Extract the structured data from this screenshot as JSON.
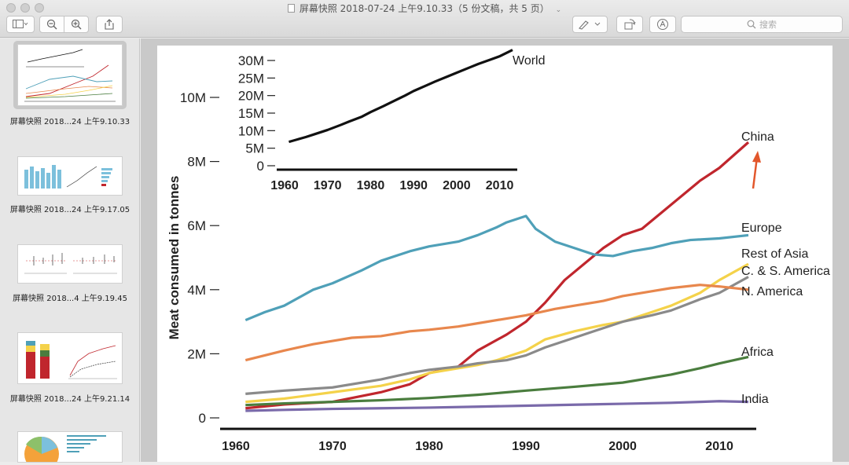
{
  "window": {
    "title": "屏幕快照 2018-07-24 上午9.10.33（5 份文稿，共 5 页）"
  },
  "toolbar": {
    "search_placeholder": "搜索"
  },
  "sidebar": {
    "items": [
      {
        "label": "屏幕快照 2018...24 上午9.10.33",
        "selected": true
      },
      {
        "label": "屏幕快照 2018...24 上午9.17.05",
        "selected": false
      },
      {
        "label": "屏幕快照 2018...4 上午9.19.45",
        "selected": false
      },
      {
        "label": "屏幕快照 2018...24 上午9.21.14",
        "selected": false
      },
      {
        "label": "",
        "selected": false
      }
    ]
  },
  "chart_data": [
    {
      "type": "line",
      "title": "",
      "ylabel": "Meat consumed in tonnes",
      "xlabel": "",
      "xlim": [
        1960,
        2013
      ],
      "ylim": [
        0,
        10000000
      ],
      "x_ticks": [
        "1960",
        "1970",
        "1980",
        "1990",
        "2000",
        "2010"
      ],
      "y_ticks": [
        "0",
        "2M",
        "4M",
        "6M",
        "8M",
        "10M"
      ],
      "grid": false,
      "series": [
        {
          "name": "China",
          "color": "#c0262d",
          "points": [
            [
              1961,
              0.3
            ],
            [
              1965,
              0.42
            ],
            [
              1970,
              0.5
            ],
            [
              1975,
              0.8
            ],
            [
              1978,
              1.05
            ],
            [
              1980,
              1.4
            ],
            [
              1983,
              1.6
            ],
            [
              1985,
              2.1
            ],
            [
              1988,
              2.6
            ],
            [
              1990,
              3.0
            ],
            [
              1992,
              3.6
            ],
            [
              1994,
              4.3
            ],
            [
              1996,
              4.8
            ],
            [
              1998,
              5.3
            ],
            [
              2000,
              5.7
            ],
            [
              2002,
              5.9
            ],
            [
              2004,
              6.4
            ],
            [
              2006,
              6.9
            ],
            [
              2008,
              7.4
            ],
            [
              2010,
              7.8
            ],
            [
              2013,
              8.6
            ]
          ]
        },
        {
          "name": "Europe",
          "color": "#4fa0b8",
          "points": [
            [
              1961,
              3.05
            ],
            [
              1963,
              3.3
            ],
            [
              1965,
              3.5
            ],
            [
              1968,
              4.0
            ],
            [
              1970,
              4.2
            ],
            [
              1973,
              4.6
            ],
            [
              1975,
              4.9
            ],
            [
              1978,
              5.2
            ],
            [
              1980,
              5.35
            ],
            [
              1983,
              5.5
            ],
            [
              1985,
              5.7
            ],
            [
              1987,
              5.95
            ],
            [
              1988,
              6.1
            ],
            [
              1990,
              6.3
            ],
            [
              1991,
              5.9
            ],
            [
              1993,
              5.5
            ],
            [
              1995,
              5.3
            ],
            [
              1997,
              5.1
            ],
            [
              1999,
              5.05
            ],
            [
              2001,
              5.2
            ],
            [
              2003,
              5.3
            ],
            [
              2005,
              5.45
            ],
            [
              2007,
              5.55
            ],
            [
              2010,
              5.6
            ],
            [
              2013,
              5.7
            ]
          ]
        },
        {
          "name": "Rest of Asia",
          "color": "#f4d24a",
          "points": [
            [
              1961,
              0.5
            ],
            [
              1965,
              0.6
            ],
            [
              1970,
              0.8
            ],
            [
              1975,
              1.0
            ],
            [
              1978,
              1.2
            ],
            [
              1980,
              1.4
            ],
            [
              1983,
              1.55
            ],
            [
              1985,
              1.65
            ],
            [
              1987,
              1.8
            ],
            [
              1990,
              2.1
            ],
            [
              1992,
              2.45
            ],
            [
              1995,
              2.7
            ],
            [
              1998,
              2.9
            ],
            [
              2000,
              3.0
            ],
            [
              2003,
              3.3
            ],
            [
              2005,
              3.5
            ],
            [
              2008,
              3.9
            ],
            [
              2010,
              4.3
            ],
            [
              2013,
              4.8
            ]
          ]
        },
        {
          "name": "C. & S. America",
          "color": "#8a8a8a",
          "points": [
            [
              1961,
              0.75
            ],
            [
              1965,
              0.85
            ],
            [
              1970,
              0.95
            ],
            [
              1975,
              1.2
            ],
            [
              1978,
              1.4
            ],
            [
              1980,
              1.5
            ],
            [
              1983,
              1.6
            ],
            [
              1985,
              1.7
            ],
            [
              1988,
              1.8
            ],
            [
              1990,
              1.95
            ],
            [
              1992,
              2.2
            ],
            [
              1995,
              2.5
            ],
            [
              1998,
              2.8
            ],
            [
              2000,
              3.0
            ],
            [
              2003,
              3.2
            ],
            [
              2005,
              3.35
            ],
            [
              2008,
              3.7
            ],
            [
              2010,
              3.9
            ],
            [
              2013,
              4.4
            ]
          ]
        },
        {
          "name": "N. America",
          "color": "#e8874d",
          "points": [
            [
              1961,
              1.8
            ],
            [
              1965,
              2.1
            ],
            [
              1968,
              2.3
            ],
            [
              1970,
              2.4
            ],
            [
              1972,
              2.5
            ],
            [
              1975,
              2.55
            ],
            [
              1978,
              2.7
            ],
            [
              1980,
              2.75
            ],
            [
              1983,
              2.85
            ],
            [
              1985,
              2.95
            ],
            [
              1988,
              3.1
            ],
            [
              1990,
              3.2
            ],
            [
              1993,
              3.4
            ],
            [
              1995,
              3.5
            ],
            [
              1998,
              3.65
            ],
            [
              2000,
              3.8
            ],
            [
              2003,
              3.95
            ],
            [
              2005,
              4.05
            ],
            [
              2008,
              4.15
            ],
            [
              2010,
              4.1
            ],
            [
              2013,
              4.0
            ]
          ]
        },
        {
          "name": "Africa",
          "color": "#4a7d3e",
          "points": [
            [
              1961,
              0.4
            ],
            [
              1965,
              0.45
            ],
            [
              1970,
              0.5
            ],
            [
              1975,
              0.55
            ],
            [
              1980,
              0.62
            ],
            [
              1985,
              0.72
            ],
            [
              1990,
              0.85
            ],
            [
              1995,
              0.97
            ],
            [
              2000,
              1.1
            ],
            [
              2005,
              1.35
            ],
            [
              2008,
              1.55
            ],
            [
              2010,
              1.7
            ],
            [
              2013,
              1.9
            ]
          ]
        },
        {
          "name": "India",
          "color": "#7a6aaa",
          "points": [
            [
              1961,
              0.22
            ],
            [
              1965,
              0.25
            ],
            [
              1970,
              0.28
            ],
            [
              1975,
              0.3
            ],
            [
              1980,
              0.32
            ],
            [
              1985,
              0.35
            ],
            [
              1990,
              0.38
            ],
            [
              1995,
              0.41
            ],
            [
              2000,
              0.44
            ],
            [
              2005,
              0.47
            ],
            [
              2008,
              0.5
            ],
            [
              2010,
              0.52
            ],
            [
              2013,
              0.5
            ]
          ]
        }
      ]
    },
    {
      "type": "line",
      "title": "",
      "xlabel": "",
      "ylabel": "",
      "xlim": [
        1960,
        2013
      ],
      "ylim": [
        0,
        30000000
      ],
      "x_ticks": [
        "1960",
        "1970",
        "1980",
        "1990",
        "2000",
        "2010"
      ],
      "y_ticks": [
        "0",
        "5M",
        "10M",
        "15M",
        "20M",
        "25M",
        "30M"
      ],
      "grid": false,
      "series": [
        {
          "name": "World",
          "color": "#111111",
          "points": [
            [
              1961,
              6.8
            ],
            [
              1963,
              7.5
            ],
            [
              1965,
              8.2
            ],
            [
              1967,
              9.0
            ],
            [
              1970,
              10.2
            ],
            [
              1973,
              11.6
            ],
            [
              1975,
              12.6
            ],
            [
              1978,
              14.0
            ],
            [
              1980,
              15.3
            ],
            [
              1983,
              17.0
            ],
            [
              1985,
              18.2
            ],
            [
              1988,
              20.0
            ],
            [
              1990,
              21.3
            ],
            [
              1993,
              22.9
            ],
            [
              1995,
              24.0
            ],
            [
              1998,
              25.5
            ],
            [
              2000,
              26.5
            ],
            [
              2003,
              28.0
            ],
            [
              2005,
              29.0
            ],
            [
              2008,
              30.3
            ],
            [
              2010,
              31.2
            ],
            [
              2013,
              33.0
            ]
          ]
        }
      ]
    }
  ]
}
